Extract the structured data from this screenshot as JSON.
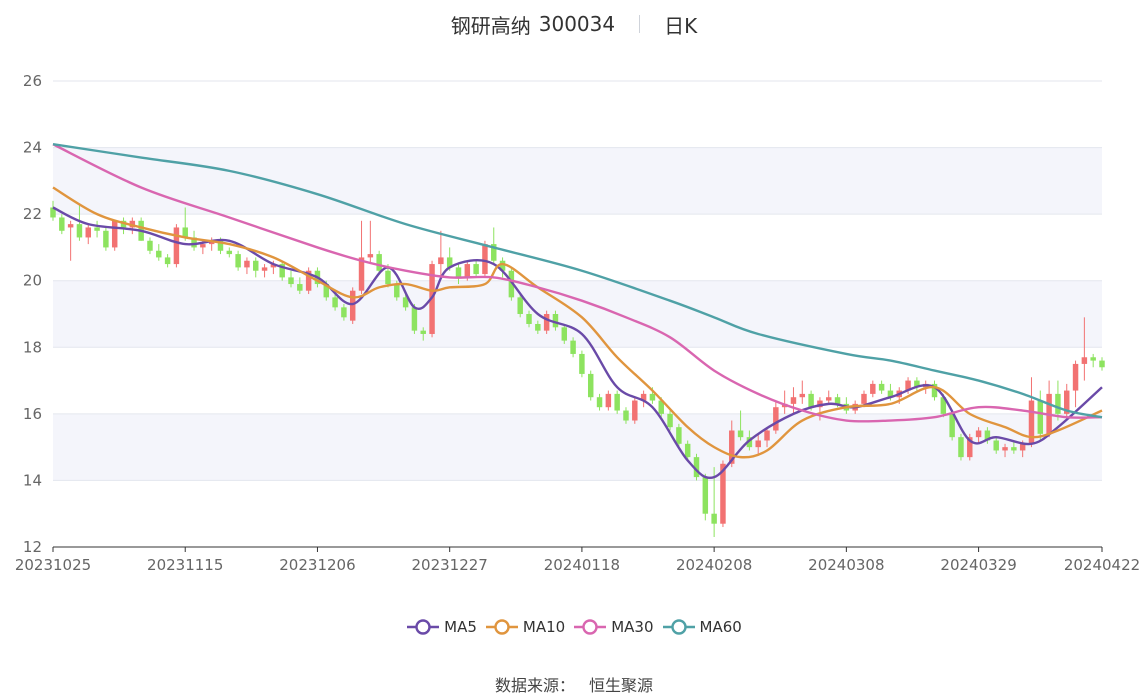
{
  "header": {
    "stock_name": "钢研高纳",
    "stock_code": "300034",
    "period": "日K"
  },
  "footer": {
    "source_label": "数据来源：",
    "source_value": "恒生聚源"
  },
  "colors": {
    "up": "#f27272",
    "down": "#8de35f",
    "MA5": "#6a4aa8",
    "MA10": "#e0953e",
    "MA30": "#d966b0",
    "MA60": "#4fa1a6",
    "grid": "#e3e6ee",
    "band": "#f4f5fb"
  },
  "chart_data": {
    "type": "candlestick",
    "ylim": [
      12,
      26
    ],
    "yticks": [
      12,
      14,
      16,
      18,
      20,
      22,
      24,
      26
    ],
    "xticks": [
      {
        "label": "20231025",
        "index": 0
      },
      {
        "label": "20231115",
        "index": 15
      },
      {
        "label": "20231206",
        "index": 30
      },
      {
        "label": "20231227",
        "index": 45
      },
      {
        "label": "20240118",
        "index": 60
      },
      {
        "label": "20240208",
        "index": 75
      },
      {
        "label": "20240308",
        "index": 90
      },
      {
        "label": "20240329",
        "index": 105
      },
      {
        "label": "20240422",
        "index": 119
      }
    ],
    "legend": [
      "MA5",
      "MA10",
      "MA30",
      "MA60"
    ],
    "ohlc": [
      [
        22.2,
        22.4,
        21.8,
        21.9
      ],
      [
        21.9,
        22.0,
        21.4,
        21.5
      ],
      [
        21.6,
        21.8,
        20.6,
        21.7
      ],
      [
        21.7,
        22.3,
        21.2,
        21.3
      ],
      [
        21.3,
        21.7,
        21.1,
        21.6
      ],
      [
        21.6,
        21.8,
        21.3,
        21.5
      ],
      [
        21.5,
        21.6,
        20.9,
        21.0
      ],
      [
        21.0,
        21.8,
        20.9,
        21.8
      ],
      [
        21.8,
        21.9,
        21.4,
        21.6
      ],
      [
        21.6,
        21.9,
        21.4,
        21.8
      ],
      [
        21.8,
        21.9,
        21.2,
        21.2
      ],
      [
        21.2,
        21.3,
        20.8,
        20.9
      ],
      [
        20.9,
        21.1,
        20.6,
        20.7
      ],
      [
        20.7,
        20.8,
        20.4,
        20.5
      ],
      [
        20.5,
        21.7,
        20.4,
        21.6
      ],
      [
        21.6,
        22.2,
        21.2,
        21.3
      ],
      [
        21.3,
        21.5,
        20.9,
        21.0
      ],
      [
        21.0,
        21.2,
        20.8,
        21.1
      ],
      [
        21.1,
        21.3,
        20.9,
        21.2
      ],
      [
        21.2,
        21.3,
        20.8,
        20.9
      ],
      [
        20.9,
        21.0,
        20.7,
        20.8
      ],
      [
        20.8,
        20.9,
        20.3,
        20.4
      ],
      [
        20.4,
        20.7,
        20.2,
        20.6
      ],
      [
        20.6,
        20.7,
        20.1,
        20.3
      ],
      [
        20.3,
        20.5,
        20.1,
        20.4
      ],
      [
        20.4,
        20.6,
        20.2,
        20.5
      ],
      [
        20.5,
        20.6,
        20.0,
        20.1
      ],
      [
        20.1,
        20.3,
        19.8,
        19.9
      ],
      [
        19.9,
        20.1,
        19.6,
        19.7
      ],
      [
        19.7,
        20.4,
        19.6,
        20.3
      ],
      [
        20.3,
        20.4,
        19.8,
        19.9
      ],
      [
        19.9,
        20.0,
        19.4,
        19.5
      ],
      [
        19.5,
        19.6,
        19.1,
        19.2
      ],
      [
        19.2,
        19.3,
        18.8,
        18.9
      ],
      [
        18.8,
        19.8,
        18.7,
        19.7
      ],
      [
        19.7,
        21.8,
        19.6,
        20.7
      ],
      [
        20.7,
        21.8,
        20.5,
        20.8
      ],
      [
        20.8,
        20.9,
        20.2,
        20.3
      ],
      [
        20.3,
        20.5,
        19.8,
        19.9
      ],
      [
        19.9,
        20.0,
        19.4,
        19.5
      ],
      [
        19.5,
        19.6,
        19.1,
        19.2
      ],
      [
        19.2,
        19.3,
        18.4,
        18.5
      ],
      [
        18.5,
        18.6,
        18.2,
        18.4
      ],
      [
        18.4,
        20.6,
        18.3,
        20.5
      ],
      [
        20.5,
        21.5,
        20.1,
        20.7
      ],
      [
        20.7,
        21.0,
        20.3,
        20.4
      ],
      [
        20.4,
        20.5,
        19.9,
        20.1
      ],
      [
        20.1,
        20.6,
        20.0,
        20.5
      ],
      [
        20.5,
        20.6,
        20.1,
        20.2
      ],
      [
        20.2,
        21.2,
        20.1,
        21.1
      ],
      [
        21.1,
        21.6,
        20.5,
        20.6
      ],
      [
        20.6,
        20.7,
        20.1,
        20.3
      ],
      [
        20.3,
        20.4,
        19.4,
        19.5
      ],
      [
        19.5,
        19.6,
        18.9,
        19.0
      ],
      [
        19.0,
        19.1,
        18.6,
        18.7
      ],
      [
        18.7,
        18.8,
        18.4,
        18.5
      ],
      [
        18.5,
        19.1,
        18.4,
        19.0
      ],
      [
        19.0,
        19.1,
        18.5,
        18.6
      ],
      [
        18.6,
        18.7,
        18.1,
        18.2
      ],
      [
        18.2,
        18.3,
        17.7,
        17.8
      ],
      [
        17.8,
        17.9,
        17.1,
        17.2
      ],
      [
        17.2,
        17.3,
        16.4,
        16.5
      ],
      [
        16.5,
        16.6,
        16.1,
        16.2
      ],
      [
        16.2,
        16.7,
        16.1,
        16.6
      ],
      [
        16.6,
        16.7,
        16.0,
        16.1
      ],
      [
        16.1,
        16.2,
        15.7,
        15.8
      ],
      [
        15.8,
        16.5,
        15.7,
        16.4
      ],
      [
        16.4,
        16.7,
        16.2,
        16.6
      ],
      [
        16.6,
        16.8,
        16.3,
        16.4
      ],
      [
        16.4,
        16.5,
        15.9,
        16.0
      ],
      [
        16.0,
        16.1,
        15.5,
        15.6
      ],
      [
        15.6,
        15.7,
        15.0,
        15.1
      ],
      [
        15.1,
        15.2,
        14.6,
        14.7
      ],
      [
        14.7,
        14.8,
        14.0,
        14.1
      ],
      [
        14.1,
        14.2,
        12.8,
        13.0
      ],
      [
        13.0,
        14.4,
        12.3,
        12.7
      ],
      [
        12.7,
        14.6,
        12.6,
        14.5
      ],
      [
        14.5,
        15.8,
        14.4,
        15.5
      ],
      [
        15.5,
        16.1,
        15.2,
        15.3
      ],
      [
        15.3,
        15.5,
        14.9,
        15.0
      ],
      [
        15.0,
        15.4,
        14.8,
        15.2
      ],
      [
        15.2,
        15.6,
        15.0,
        15.5
      ],
      [
        15.5,
        16.4,
        15.4,
        16.2
      ],
      [
        16.2,
        16.7,
        16.0,
        16.3
      ],
      [
        16.3,
        16.8,
        16.0,
        16.5
      ],
      [
        16.5,
        17.0,
        16.3,
        16.6
      ],
      [
        16.6,
        16.7,
        16.1,
        16.2
      ],
      [
        16.2,
        16.5,
        15.8,
        16.4
      ],
      [
        16.4,
        16.7,
        16.3,
        16.5
      ],
      [
        16.5,
        16.6,
        16.2,
        16.3
      ],
      [
        16.3,
        16.5,
        16.0,
        16.1
      ],
      [
        16.1,
        16.4,
        16.0,
        16.3
      ],
      [
        16.3,
        16.7,
        16.2,
        16.6
      ],
      [
        16.6,
        17.0,
        16.5,
        16.9
      ],
      [
        16.9,
        17.0,
        16.6,
        16.7
      ],
      [
        16.7,
        16.9,
        16.4,
        16.5
      ],
      [
        16.5,
        16.8,
        16.3,
        16.7
      ],
      [
        16.7,
        17.1,
        16.6,
        17.0
      ],
      [
        17.0,
        17.1,
        16.7,
        16.8
      ],
      [
        16.8,
        17.0,
        16.6,
        16.9
      ],
      [
        16.9,
        17.0,
        16.4,
        16.5
      ],
      [
        16.5,
        16.6,
        15.9,
        16.0
      ],
      [
        16.0,
        16.1,
        15.2,
        15.3
      ],
      [
        15.3,
        15.4,
        14.6,
        14.7
      ],
      [
        14.7,
        15.4,
        14.6,
        15.3
      ],
      [
        15.3,
        15.6,
        15.1,
        15.5
      ],
      [
        15.5,
        15.6,
        15.1,
        15.2
      ],
      [
        15.2,
        15.3,
        14.8,
        14.9
      ],
      [
        14.9,
        15.1,
        14.7,
        15.0
      ],
      [
        15.0,
        15.2,
        14.8,
        14.9
      ],
      [
        14.9,
        15.2,
        14.7,
        15.1
      ],
      [
        15.1,
        17.1,
        15.0,
        16.4
      ],
      [
        16.4,
        16.7,
        15.2,
        15.4
      ],
      [
        15.4,
        17.0,
        15.3,
        16.6
      ],
      [
        16.6,
        17.0,
        15.8,
        16.0
      ],
      [
        16.0,
        16.9,
        15.9,
        16.7
      ],
      [
        16.7,
        17.6,
        16.2,
        17.5
      ],
      [
        17.5,
        18.9,
        17.0,
        17.7
      ],
      [
        17.7,
        17.8,
        17.4,
        17.6
      ],
      [
        17.6,
        17.7,
        17.3,
        17.4
      ]
    ],
    "ma_key_points": {
      "MA5": [
        [
          0,
          22.2
        ],
        [
          4,
          21.7
        ],
        [
          10,
          21.5
        ],
        [
          15,
          21.1
        ],
        [
          20,
          21.2
        ],
        [
          25,
          20.5
        ],
        [
          30,
          20.1
        ],
        [
          34,
          19.3
        ],
        [
          38,
          20.4
        ],
        [
          41,
          19.2
        ],
        [
          43,
          19.5
        ],
        [
          45,
          20.4
        ],
        [
          50,
          20.5
        ],
        [
          55,
          19.0
        ],
        [
          60,
          18.4
        ],
        [
          64,
          16.8
        ],
        [
          68,
          16.2
        ],
        [
          72,
          14.6
        ],
        [
          75,
          14.1
        ],
        [
          79,
          15.2
        ],
        [
          84,
          16.0
        ],
        [
          88,
          16.3
        ],
        [
          91,
          16.2
        ],
        [
          95,
          16.5
        ],
        [
          100,
          16.8
        ],
        [
          104,
          15.2
        ],
        [
          107,
          15.3
        ],
        [
          111,
          15.1
        ],
        [
          114,
          15.6
        ],
        [
          119,
          16.8
        ]
      ],
      "MA10": [
        [
          0,
          22.8
        ],
        [
          5,
          22.0
        ],
        [
          10,
          21.6
        ],
        [
          15,
          21.3
        ],
        [
          20,
          21.1
        ],
        [
          25,
          20.7
        ],
        [
          30,
          20.0
        ],
        [
          34,
          19.5
        ],
        [
          37,
          19.8
        ],
        [
          40,
          19.9
        ],
        [
          43,
          19.7
        ],
        [
          45,
          19.8
        ],
        [
          49,
          19.9
        ],
        [
          51,
          20.5
        ],
        [
          55,
          19.8
        ],
        [
          60,
          18.9
        ],
        [
          64,
          17.7
        ],
        [
          68,
          16.7
        ],
        [
          72,
          15.6
        ],
        [
          75,
          15.0
        ],
        [
          78,
          14.7
        ],
        [
          81,
          14.9
        ],
        [
          85,
          15.8
        ],
        [
          90,
          16.2
        ],
        [
          95,
          16.3
        ],
        [
          100,
          16.8
        ],
        [
          104,
          16.0
        ],
        [
          108,
          15.6
        ],
        [
          111,
          15.3
        ],
        [
          114,
          15.5
        ],
        [
          119,
          16.1
        ]
      ],
      "MA30": [
        [
          0,
          24.1
        ],
        [
          10,
          22.8
        ],
        [
          20,
          21.9
        ],
        [
          30,
          21.0
        ],
        [
          35,
          20.6
        ],
        [
          40,
          20.3
        ],
        [
          45,
          20.1
        ],
        [
          50,
          20.1
        ],
        [
          55,
          19.8
        ],
        [
          60,
          19.4
        ],
        [
          65,
          18.9
        ],
        [
          70,
          18.3
        ],
        [
          75,
          17.3
        ],
        [
          80,
          16.6
        ],
        [
          85,
          16.1
        ],
        [
          90,
          15.8
        ],
        [
          95,
          15.8
        ],
        [
          100,
          15.9
        ],
        [
          105,
          16.2
        ],
        [
          110,
          16.1
        ],
        [
          115,
          15.9
        ],
        [
          119,
          15.9
        ]
      ],
      "MA60": [
        [
          0,
          24.1
        ],
        [
          10,
          23.7
        ],
        [
          20,
          23.3
        ],
        [
          30,
          22.6
        ],
        [
          40,
          21.7
        ],
        [
          50,
          21.0
        ],
        [
          60,
          20.3
        ],
        [
          70,
          19.4
        ],
        [
          75,
          18.9
        ],
        [
          80,
          18.4
        ],
        [
          90,
          17.8
        ],
        [
          95,
          17.6
        ],
        [
          100,
          17.3
        ],
        [
          105,
          17.0
        ],
        [
          110,
          16.6
        ],
        [
          115,
          16.1
        ],
        [
          119,
          15.9
        ]
      ]
    }
  }
}
